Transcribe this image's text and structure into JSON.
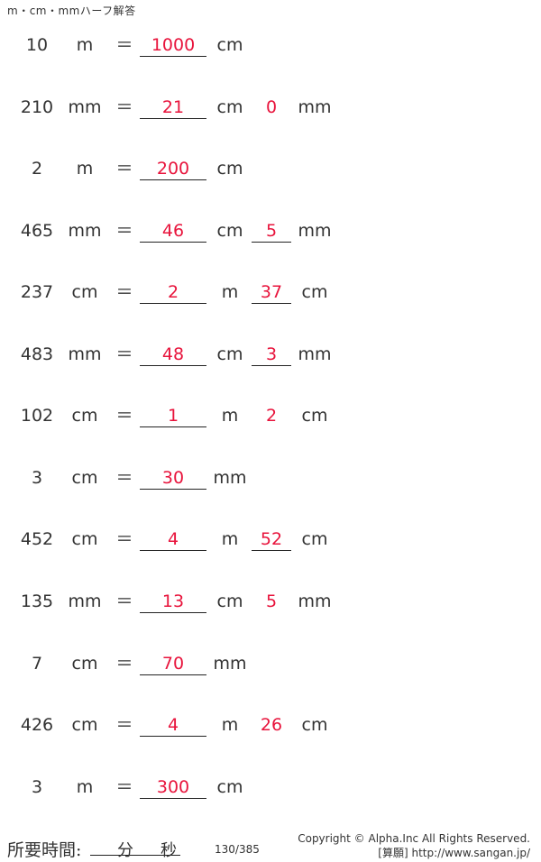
{
  "title": "m・cm・mmハーフ解答",
  "rows": [
    {
      "num": "10",
      "u1": "m",
      "eq": "＝",
      "a1": "1000",
      "u2": "cm",
      "a2": "",
      "u3": "",
      "a2line": false
    },
    {
      "num": "210",
      "u1": "mm",
      "eq": "＝",
      "a1": "21",
      "u2": "cm",
      "a2": "0",
      "u3": "mm",
      "a2line": false
    },
    {
      "num": "2",
      "u1": "m",
      "eq": "＝",
      "a1": "200",
      "u2": "cm",
      "a2": "",
      "u3": "",
      "a2line": false
    },
    {
      "num": "465",
      "u1": "mm",
      "eq": "＝",
      "a1": "46",
      "u2": "cm",
      "a2": "5",
      "u3": "mm",
      "a2line": true
    },
    {
      "num": "237",
      "u1": "cm",
      "eq": "＝",
      "a1": "2",
      "u2": "m",
      "a2": "37",
      "u3": "cm",
      "a2line": true
    },
    {
      "num": "483",
      "u1": "mm",
      "eq": "＝",
      "a1": "48",
      "u2": "cm",
      "a2": "3",
      "u3": "mm",
      "a2line": true
    },
    {
      "num": "102",
      "u1": "cm",
      "eq": "＝",
      "a1": "1",
      "u2": "m",
      "a2": "2",
      "u3": "cm",
      "a2line": false
    },
    {
      "num": "3",
      "u1": "cm",
      "eq": "＝",
      "a1": "30",
      "u2": "mm",
      "a2": "",
      "u3": "",
      "a2line": false
    },
    {
      "num": "452",
      "u1": "cm",
      "eq": "＝",
      "a1": "4",
      "u2": "m",
      "a2": "52",
      "u3": "cm",
      "a2line": true
    },
    {
      "num": "135",
      "u1": "mm",
      "eq": "＝",
      "a1": "13",
      "u2": "cm",
      "a2": "5",
      "u3": "mm",
      "a2line": false
    },
    {
      "num": "7",
      "u1": "cm",
      "eq": "＝",
      "a1": "70",
      "u2": "mm",
      "a2": "",
      "u3": "",
      "a2line": false
    },
    {
      "num": "426",
      "u1": "cm",
      "eq": "＝",
      "a1": "4",
      "u2": "m",
      "a2": "26",
      "u3": "cm",
      "a2line": false
    },
    {
      "num": "3",
      "u1": "m",
      "eq": "＝",
      "a1": "300",
      "u2": "cm",
      "a2": "",
      "u3": "",
      "a2line": false
    }
  ],
  "footer": {
    "time_label": "所要時間:",
    "minutes": "分",
    "seconds": "秒",
    "page": "130/385",
    "copyright": "Copyright © Alpha.Inc All Rights Reserved.",
    "site": "[算願] http://www.sangan.jp/"
  },
  "colors": {
    "answer": "#e8143c"
  }
}
